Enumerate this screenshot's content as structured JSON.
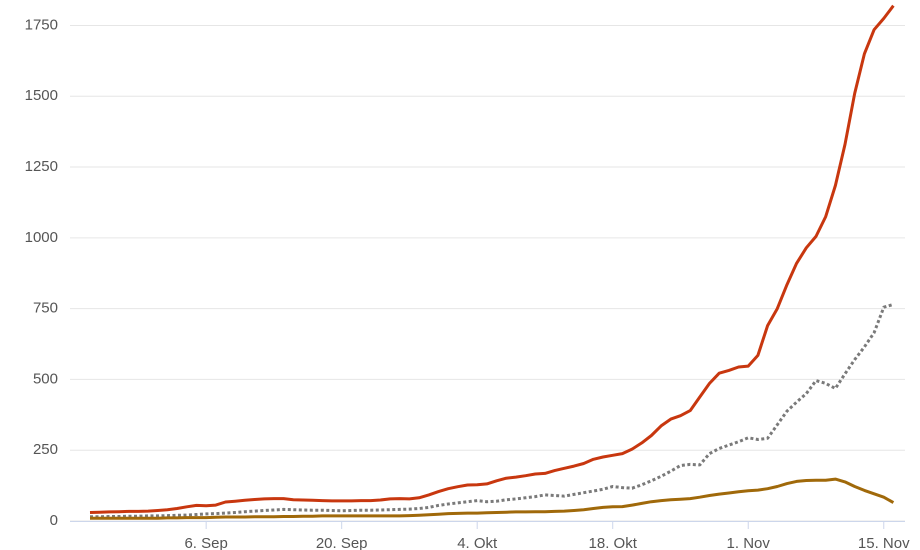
{
  "chart_data": {
    "type": "line",
    "categories": [
      null,
      null,
      null,
      null,
      null,
      null,
      null,
      null,
      null,
      null,
      null,
      null,
      "6. Sep",
      null,
      null,
      null,
      null,
      null,
      null,
      null,
      null,
      null,
      null,
      null,
      null,
      null,
      "20. Sep",
      null,
      null,
      null,
      null,
      null,
      null,
      null,
      null,
      null,
      null,
      null,
      null,
      null,
      "4. Okt",
      null,
      null,
      null,
      null,
      null,
      null,
      null,
      null,
      null,
      null,
      null,
      null,
      null,
      "18. Okt",
      null,
      null,
      null,
      null,
      null,
      null,
      null,
      null,
      null,
      null,
      null,
      null,
      null,
      "1. Nov",
      null,
      null,
      null,
      null,
      null,
      null,
      null,
      null,
      null,
      null,
      null,
      null,
      null,
      "15. Nov",
      null
    ],
    "series": [
      {
        "color": "#c8370f",
        "dash": "solid",
        "values": [
          30,
          31,
          32,
          33,
          34,
          34,
          35,
          37,
          40,
          44,
          50,
          55,
          54,
          56,
          67,
          70,
          73,
          76,
          78,
          79,
          79,
          75,
          74,
          73,
          72,
          71,
          71,
          71,
          72,
          72,
          74,
          78,
          79,
          78,
          82,
          92,
          104,
          114,
          121,
          127,
          128,
          131,
          142,
          151,
          155,
          160,
          166,
          168,
          178,
          186,
          194,
          203,
          218,
          226,
          232,
          238,
          254,
          276,
          302,
          336,
          360,
          372,
          390,
          438,
          486,
          522,
          532,
          544,
          547,
          585,
          690,
          750,
          835,
          910,
          965,
          1005,
          1075,
          1185,
          1330,
          1510,
          1650,
          1735,
          1775,
          1820
        ]
      },
      {
        "color": "#7a7a7a",
        "dash": "dotted",
        "values": [
          15,
          15,
          16,
          16,
          17,
          17,
          18,
          18,
          19,
          20,
          21,
          23,
          25,
          26,
          28,
          30,
          33,
          35,
          37,
          39,
          41,
          40,
          39,
          38,
          38,
          37,
          36,
          37,
          38,
          38,
          39,
          40,
          41,
          42,
          44,
          48,
          55,
          60,
          64,
          68,
          72,
          68,
          70,
          75,
          78,
          82,
          86,
          92,
          90,
          88,
          94,
          100,
          106,
          112,
          122,
          118,
          116,
          128,
          142,
          158,
          176,
          196,
          200,
          198,
          238,
          256,
          268,
          280,
          294,
          288,
          292,
          340,
          388,
          420,
          450,
          496,
          486,
          468,
          520,
          570,
          615,
          665,
          755,
          765
        ]
      },
      {
        "color": "#a0690a",
        "dash": "solid",
        "values": [
          10,
          10,
          10,
          10,
          10,
          10,
          10,
          10,
          11,
          11,
          12,
          12,
          12,
          13,
          14,
          14,
          14,
          15,
          15,
          15,
          16,
          16,
          17,
          17,
          18,
          18,
          18,
          18,
          18,
          18,
          18,
          18,
          18,
          19,
          20,
          22,
          24,
          26,
          27,
          28,
          28,
          29,
          30,
          31,
          32,
          32,
          33,
          33,
          34,
          35,
          37,
          40,
          44,
          48,
          50,
          51,
          56,
          62,
          68,
          72,
          75,
          77,
          79,
          84,
          90,
          95,
          99,
          103,
          107,
          109,
          114,
          122,
          132,
          140,
          143,
          144,
          144,
          148,
          138,
          122,
          108,
          96,
          84,
          65
        ]
      }
    ],
    "ylim": [
      0,
      1840
    ],
    "yticks": [
      0,
      250,
      500,
      750,
      1000,
      1250,
      1500,
      1750
    ],
    "grid": true
  }
}
